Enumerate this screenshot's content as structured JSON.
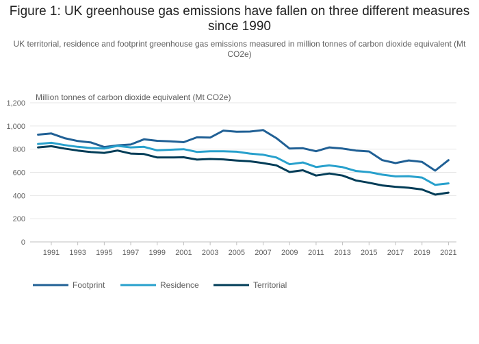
{
  "figure": {
    "title": "Figure 1: UK greenhouse gas emissions have fallen on three different measures since 1990",
    "subtitle": "UK territorial, residence and footprint greenhouse gas emissions measured in million tonnes of carbon dioxide equivalent (Mt CO2e)"
  },
  "chart_data": {
    "type": "line",
    "title": "Figure 1: UK greenhouse gas emissions have fallen on three different measures since 1990",
    "subtitle": "UK territorial, residence and footprint greenhouse gas emissions measured in million tonnes of carbon dioxide equivalent (Mt CO2e)",
    "ylabel": "Million tonnes of carbon dioxide equivalent (Mt CO2e)",
    "xlabel": "",
    "ylim": [
      0,
      1200
    ],
    "yticks": [
      "0",
      "200",
      "400",
      "600",
      "800",
      "1,000",
      "1,200"
    ],
    "xticks": [
      "1991",
      "1993",
      "1995",
      "1997",
      "1999",
      "2001",
      "2003",
      "2005",
      "2007",
      "2009",
      "2011",
      "2013",
      "2015",
      "2017",
      "2019",
      "2021"
    ],
    "grid": true,
    "legend_position": "bottom-left",
    "x": [
      1990,
      1991,
      1992,
      1993,
      1994,
      1995,
      1996,
      1997,
      1998,
      1999,
      2000,
      2001,
      2002,
      2003,
      2004,
      2005,
      2006,
      2007,
      2008,
      2009,
      2010,
      2011,
      2012,
      2013,
      2014,
      2015,
      2016,
      2017,
      2018,
      2019,
      2020,
      2021
    ],
    "series": [
      {
        "name": "Footprint",
        "color": "#206095",
        "values": [
          925,
          935,
          895,
          870,
          858,
          818,
          833,
          840,
          885,
          872,
          868,
          860,
          902,
          900,
          960,
          950,
          952,
          965,
          895,
          805,
          808,
          782,
          815,
          805,
          788,
          780,
          705,
          680,
          703,
          690,
          615,
          705
        ]
      },
      {
        "name": "Residence",
        "color": "#27a0cc",
        "values": [
          845,
          855,
          835,
          820,
          810,
          805,
          828,
          815,
          820,
          790,
          795,
          800,
          776,
          782,
          782,
          778,
          762,
          752,
          728,
          670,
          685,
          646,
          660,
          645,
          612,
          602,
          580,
          565,
          567,
          555,
          492,
          505
        ]
      },
      {
        "name": "Territorial",
        "color": "#003c57",
        "values": [
          815,
          825,
          805,
          788,
          775,
          768,
          788,
          762,
          758,
          728,
          728,
          730,
          710,
          715,
          712,
          702,
          695,
          680,
          660,
          603,
          618,
          572,
          590,
          572,
          530,
          510,
          487,
          475,
          467,
          452,
          408,
          425
        ]
      }
    ]
  }
}
